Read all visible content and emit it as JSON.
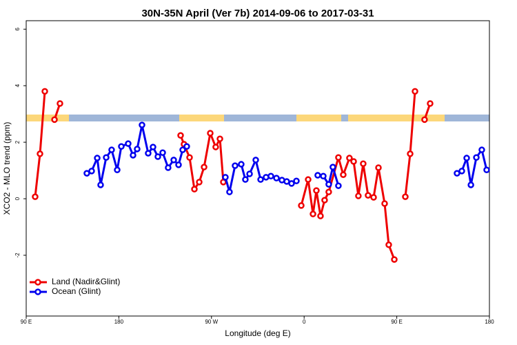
{
  "chart_data": {
    "type": "line",
    "title": "30N-35N April (Ver 7b)   2014-09-06 to 2017-03-31",
    "x_label": "Longitude (deg E)",
    "y_label": "XCO2 - MLO trend (ppm)",
    "xlim": [
      90,
      540
    ],
    "xticks": [
      {
        "value": 90,
        "label": "90 E"
      },
      180,
      {
        "value": 270,
        "label": "90 W"
      },
      {
        "value": 360,
        "label": "0"
      },
      {
        "value": 450,
        "label": "90 E"
      },
      {
        "value": 540,
        "label": "180"
      }
    ],
    "ylim": [
      -4.15,
      6.3
    ],
    "yticks": [
      -2,
      0,
      2,
      4,
      6
    ],
    "legend_position": "bottomleft",
    "series": [
      {
        "name": "Land (Nadir&Glint)",
        "color": "#ee0000",
        "x": [
          98.7,
          103.4,
          108.1,
          null,
          117.5,
          122.8,
          null,
          240.0,
          243.3,
          248.7,
          253.4,
          258.1,
          262.8,
          268.8,
          274.1,
          278.2,
          281.5,
          null,
          357.2,
          363.9,
          368.6,
          371.9,
          375.9,
          379.9,
          383.9,
          393.3,
          398.0,
          404.0,
          408.1,
          412.7,
          417.4,
          422.1,
          427.5,
          432.2,
          438.2,
          442.2,
          447.6,
          null,
          458.3,
          463.0,
          467.7,
          null,
          477.0,
          482.4
        ],
        "values": [
          0.07,
          1.59,
          3.8,
          null,
          2.8,
          3.37,
          null,
          2.24,
          1.93,
          1.46,
          0.34,
          0.59,
          1.12,
          2.32,
          1.83,
          2.12,
          0.59,
          null,
          -0.24,
          0.68,
          -0.54,
          0.29,
          -0.61,
          -0.05,
          0.24,
          1.46,
          0.85,
          1.44,
          1.32,
          0.1,
          1.24,
          0.12,
          0.05,
          1.1,
          -0.17,
          -1.63,
          -2.15,
          null,
          0.07,
          1.59,
          3.8,
          null,
          2.8,
          3.37
        ]
      },
      {
        "name": "Ocean (Glint)",
        "color": "#0000ee",
        "x": [
          148.9,
          153.6,
          159.0,
          162.3,
          167.7,
          173.0,
          178.4,
          182.4,
          189.1,
          193.8,
          197.8,
          202.5,
          208.5,
          213.2,
          217.9,
          222.6,
          227.9,
          233.3,
          238.0,
          242.0,
          246.0,
          null,
          283.5,
          287.5,
          292.9,
          298.9,
          302.9,
          307.0,
          313.0,
          317.7,
          323.0,
          327.7,
          333.1,
          338.4,
          343.1,
          347.8,
          352.5,
          null,
          373.2,
          378.6,
          383.9,
          387.9,
          393.3,
          null,
          508.5,
          513.2,
          517.9,
          522.0,
          527.3,
          532.6,
          537.3
        ],
        "values": [
          0.9,
          0.98,
          1.44,
          0.49,
          1.46,
          1.73,
          1.02,
          1.85,
          1.95,
          1.54,
          1.76,
          2.61,
          1.61,
          1.83,
          1.49,
          1.63,
          1.1,
          1.37,
          1.2,
          1.73,
          1.85,
          null,
          0.76,
          0.24,
          1.17,
          1.22,
          0.68,
          0.88,
          1.37,
          0.68,
          0.76,
          0.8,
          0.73,
          0.66,
          0.61,
          0.54,
          0.63,
          null,
          0.83,
          0.8,
          0.51,
          1.12,
          0.46,
          null,
          0.9,
          0.98,
          1.44,
          0.49,
          1.46,
          1.73,
          1.02
        ]
      }
    ]
  }
}
